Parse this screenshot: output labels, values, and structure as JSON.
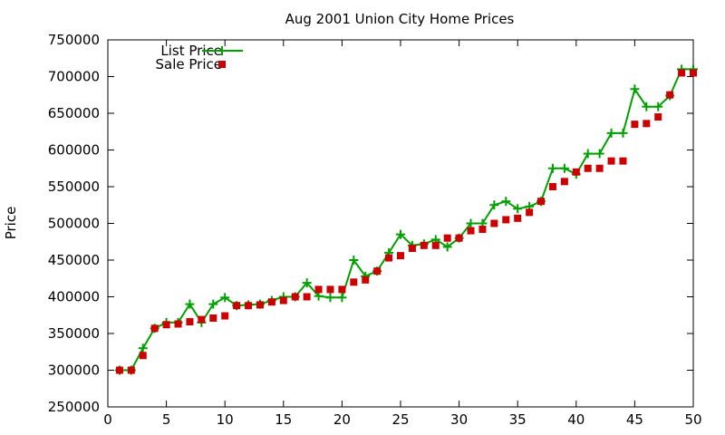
{
  "chart_data": {
    "type": "line",
    "title": "Aug 2001 Union City Home Prices",
    "xlabel": "",
    "ylabel": "Price",
    "xlim": [
      0,
      50
    ],
    "ylim": [
      250000,
      750000
    ],
    "xticks": [
      "0",
      "5",
      "10",
      "15",
      "20",
      "25",
      "30",
      "35",
      "40",
      "45",
      "50"
    ],
    "yticks": [
      "250000",
      "300000",
      "350000",
      "400000",
      "450000",
      "500000",
      "550000",
      "600000",
      "650000",
      "700000",
      "750000"
    ],
    "grid": false,
    "legend_position": "top-left",
    "colors": {
      "list": "#00a000",
      "sale": "#cc0000"
    },
    "series": [
      {
        "name": "List Price",
        "style": "lines+crosses",
        "x": [
          1,
          2,
          3,
          4,
          5,
          6,
          7,
          8,
          9,
          10,
          11,
          12,
          13,
          14,
          15,
          16,
          17,
          18,
          19,
          20,
          21,
          22,
          23,
          24,
          25,
          26,
          27,
          28,
          29,
          30,
          31,
          32,
          33,
          34,
          35,
          36,
          37,
          38,
          39,
          40,
          41,
          42,
          43,
          44,
          45,
          46,
          47,
          48,
          49,
          50
        ],
        "values": [
          300000,
          300000,
          330000,
          357000,
          365000,
          365000,
          390000,
          365000,
          390000,
          399000,
          388000,
          389000,
          390000,
          395000,
          400000,
          400000,
          419000,
          401000,
          399000,
          399000,
          450000,
          428000,
          435000,
          460000,
          485000,
          470000,
          472000,
          478000,
          468000,
          480000,
          500000,
          500000,
          525000,
          530000,
          520000,
          523000,
          530000,
          575000,
          575000,
          567000,
          595000,
          595000,
          623000,
          623000,
          683000,
          659000,
          659000,
          674000,
          710000,
          710000
        ]
      },
      {
        "name": "Sale Price",
        "style": "points",
        "x": [
          1,
          2,
          3,
          4,
          5,
          6,
          7,
          8,
          9,
          10,
          11,
          12,
          13,
          14,
          15,
          16,
          17,
          18,
          19,
          20,
          21,
          22,
          23,
          24,
          25,
          26,
          27,
          28,
          29,
          30,
          31,
          32,
          33,
          34,
          35,
          36,
          37,
          38,
          39,
          40,
          41,
          42,
          43,
          44,
          45,
          46,
          47,
          48,
          49,
          50
        ],
        "values": [
          300000,
          300000,
          320000,
          357000,
          362000,
          363000,
          366000,
          369000,
          371000,
          374000,
          388000,
          388000,
          389000,
          393000,
          395000,
          400000,
          400000,
          410000,
          410000,
          410000,
          420000,
          423000,
          435000,
          453000,
          456000,
          466000,
          470000,
          470000,
          480000,
          480000,
          490000,
          492000,
          500000,
          505000,
          507000,
          515000,
          530000,
          550000,
          557000,
          570000,
          575000,
          575000,
          585000,
          585000,
          635000,
          636000,
          645000,
          675000,
          705000,
          705000
        ]
      }
    ]
  }
}
